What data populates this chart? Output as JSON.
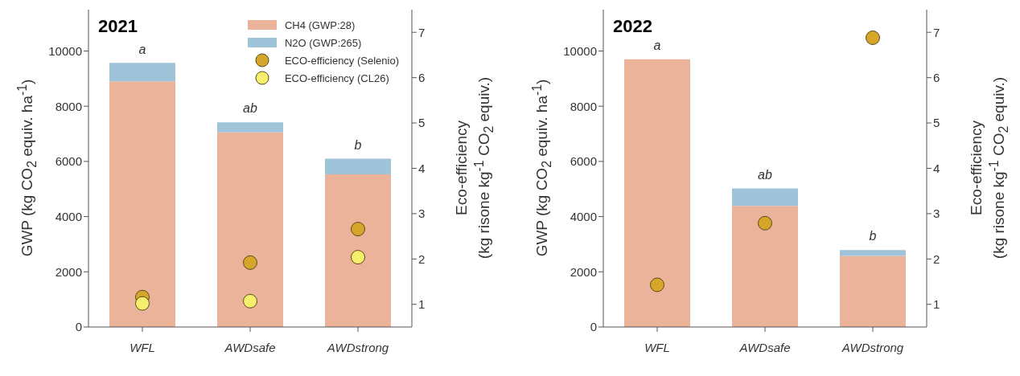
{
  "chart_data": [
    {
      "type": "bar",
      "title": "2021",
      "categories": [
        "WFL",
        "AWDsafe",
        "AWDstrong"
      ],
      "stacked": true,
      "ylabel": "GWP (kg CO$_{2}$ equiv. ha$^{-1}$)",
      "y2label": "Eco-efficiency\n(kg risone kg$^{-1}$ CO$_{2}$ equiv.)",
      "ylim": [
        0,
        11500
      ],
      "yticks": [
        0,
        2000,
        4000,
        6000,
        8000,
        10000
      ],
      "y2lim": [
        0.5,
        7.5
      ],
      "y2ticks": [
        1,
        2,
        3,
        4,
        5,
        6,
        7
      ],
      "legend": "top right",
      "marker": "circle",
      "series": [
        {
          "name": "CH4 (GWP:28)",
          "color": "#ebb49a",
          "values": [
            8900,
            7050,
            5530
          ]
        },
        {
          "name": "N2O (GWP:265)",
          "color": "#9fc3d9",
          "values": [
            670,
            370,
            570
          ]
        },
        {
          "name": "ECO-efficiency (Selenio)",
          "type": "scatter",
          "axis": "y2",
          "color": "#d6a62a",
          "values": [
            1.16,
            1.92,
            2.66
          ]
        },
        {
          "name": "ECO-efficiency (CL26)",
          "type": "scatter",
          "axis": "y2",
          "color": "#f6ef6e",
          "values": [
            1.02,
            1.07,
            2.04
          ]
        }
      ],
      "annotations": [
        "a",
        "ab",
        "b"
      ]
    },
    {
      "type": "bar",
      "title": "2022",
      "categories": [
        "WFL",
        "AWDsafe",
        "AWDstrong"
      ],
      "stacked": true,
      "ylabel": "GWP (kg CO$_{2}$ equiv. ha$^{-1}$)",
      "y2label": "Eco-efficiency\n(kg risone kg$^{-1}$ CO$_{2}$ equiv.)",
      "ylim": [
        0,
        11500
      ],
      "yticks": [
        0,
        2000,
        4000,
        6000,
        8000,
        10000
      ],
      "y2lim": [
        0.5,
        7.5
      ],
      "y2ticks": [
        1,
        2,
        3,
        4,
        5,
        6,
        7
      ],
      "marker": "circle",
      "series": [
        {
          "color": "#ebb49a",
          "values": [
            9700,
            4390,
            2580
          ]
        },
        {
          "color": "#9fc3d9",
          "values": [
            0,
            630,
            210
          ]
        },
        {
          "type": "scatter",
          "axis": "y2",
          "color": "#d6a62a",
          "values": [
            1.43,
            2.79,
            6.88
          ]
        }
      ],
      "annotations": [
        "a",
        "ab",
        "b"
      ]
    }
  ]
}
